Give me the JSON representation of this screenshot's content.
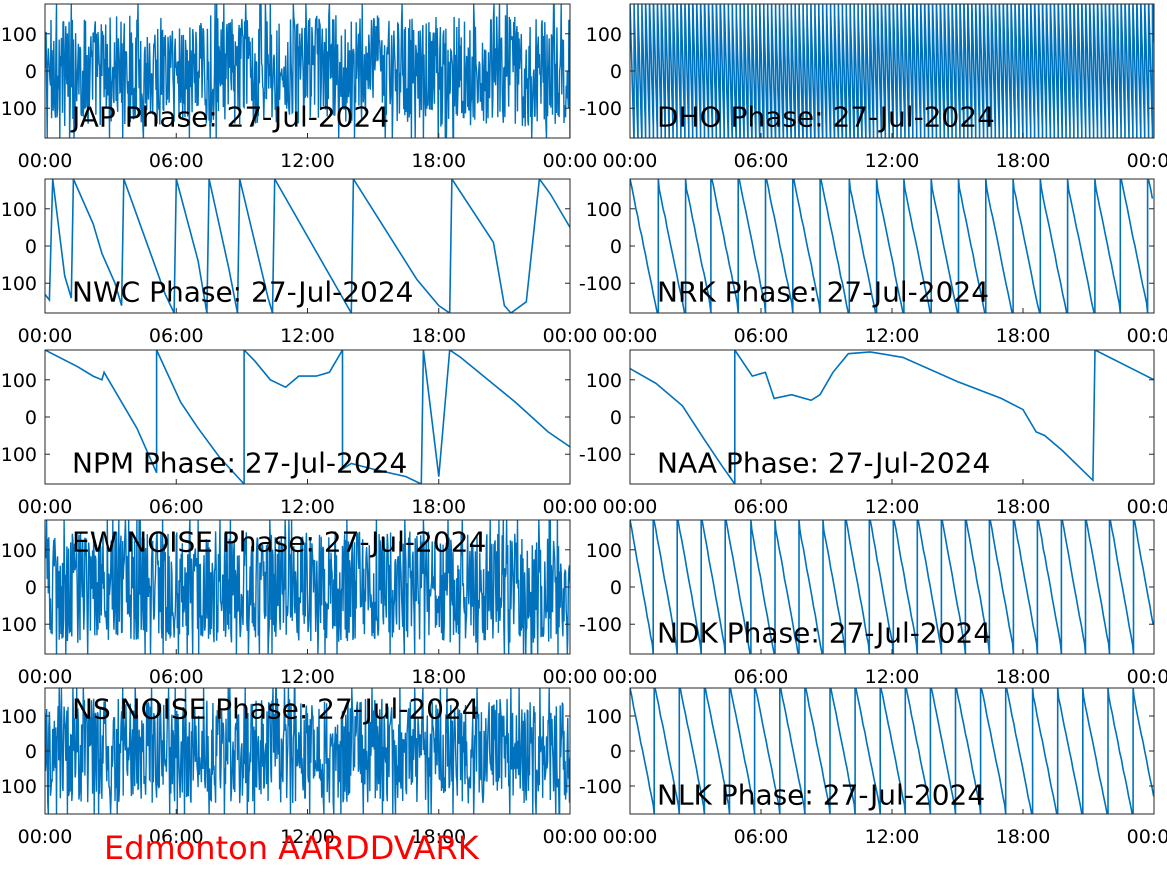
{
  "footer": {
    "title": "Edmonton AARDDVARK",
    "color": "#ff0000"
  },
  "style": {
    "line_color": "#0072bd",
    "axis_color": "#262626",
    "text_color": "#000000"
  },
  "chart_data": [
    {
      "type": "line",
      "panel": "JAP",
      "title": "JAP Phase: 27-Jul-2024",
      "xlabel": "",
      "ylabel": "",
      "xticks": [
        "00:00",
        "06:00",
        "12:00",
        "18:00",
        "00:00"
      ],
      "yticks": [
        "100",
        "0",
        "100"
      ],
      "ylim": [
        -180,
        180
      ],
      "xlim": [
        0,
        24
      ],
      "grid": false,
      "series": [
        {
          "pattern": "noise",
          "wraps": 22,
          "values": []
        }
      ]
    },
    {
      "type": "line",
      "panel": "DHO",
      "title": "DHO Phase: 27-Jul-2024",
      "xlabel": "",
      "ylabel": "",
      "xticks": [
        "00:00",
        "06:00",
        "12:00",
        "18:00",
        "00:00"
      ],
      "yticks": [
        "100",
        "0",
        "-100"
      ],
      "ylim": [
        -180,
        180
      ],
      "xlim": [
        0,
        24
      ],
      "grid": false,
      "series": [
        {
          "pattern": "dense_sawtooth",
          "period_hours": 0.18,
          "values": []
        }
      ]
    },
    {
      "type": "line",
      "panel": "NWC",
      "title": "NWC Phase: 27-Jul-2024",
      "xlabel": "",
      "ylabel": "",
      "xticks": [
        "00:00",
        "06:00",
        "12:00",
        "18:00",
        "00:00"
      ],
      "yticks": [
        "100",
        "0",
        "100"
      ],
      "ylim": [
        -180,
        180
      ],
      "xlim": [
        0,
        24
      ],
      "grid": false,
      "series": [
        {
          "pattern": "path",
          "values": [
            [
              0,
              -130
            ],
            [
              0.2,
              -145
            ],
            [
              0.35,
              180
            ],
            [
              0.9,
              -80
            ],
            [
              1.2,
              -140
            ],
            [
              1.3,
              180
            ],
            [
              2.2,
              60
            ],
            [
              2.6,
              -20
            ],
            [
              3.2,
              -100
            ],
            [
              3.5,
              -160
            ],
            [
              3.6,
              180
            ],
            [
              5.5,
              -130
            ],
            [
              5.9,
              -180
            ],
            [
              6,
              180
            ],
            [
              7.0,
              -40
            ],
            [
              7.4,
              -180
            ],
            [
              7.5,
              180
            ],
            [
              8.4,
              -60
            ],
            [
              8.8,
              -180
            ],
            [
              8.9,
              180
            ],
            [
              10.2,
              -140
            ],
            [
              10.4,
              -180
            ],
            [
              10.5,
              180
            ],
            [
              14.0,
              -180
            ],
            [
              14.1,
              180
            ],
            [
              17.0,
              -90
            ],
            [
              18.0,
              -160
            ],
            [
              18.5,
              -180
            ],
            [
              18.6,
              180
            ],
            [
              20.5,
              10
            ],
            [
              21.0,
              -160
            ],
            [
              21.3,
              -180
            ],
            [
              22.0,
              -150
            ],
            [
              22.6,
              180
            ],
            [
              23.1,
              140
            ],
            [
              24,
              50
            ]
          ]
        }
      ]
    },
    {
      "type": "line",
      "panel": "NRK",
      "title": "NRK Phase: 27-Jul-2024",
      "xlabel": "",
      "ylabel": "",
      "xticks": [
        "00:00",
        "06:00",
        "12:00",
        "18:00",
        "00:00"
      ],
      "yticks": [
        "100",
        "0",
        "-100"
      ],
      "ylim": [
        -180,
        180
      ],
      "xlim": [
        0,
        24
      ],
      "grid": false,
      "series": [
        {
          "pattern": "sawtooth",
          "period_hours": 1.25,
          "values": []
        }
      ]
    },
    {
      "type": "line",
      "panel": "NPM",
      "title": "NPM Phase: 27-Jul-2024",
      "xlabel": "",
      "ylabel": "",
      "xticks": [
        "00:00",
        "06:00",
        "12:00",
        "18:00",
        "00:00"
      ],
      "yticks": [
        "100",
        "0",
        "100"
      ],
      "ylim": [
        -180,
        180
      ],
      "xlim": [
        0,
        24
      ],
      "grid": false,
      "series": [
        {
          "pattern": "path",
          "values": [
            [
              0,
              180
            ],
            [
              1.5,
              135
            ],
            [
              2.2,
              110
            ],
            [
              2.6,
              100
            ],
            [
              2.7,
              120
            ],
            [
              3.3,
              60
            ],
            [
              4.2,
              -30
            ],
            [
              5.1,
              -150
            ],
            [
              5.1,
              180
            ],
            [
              6.2,
              40
            ],
            [
              7.0,
              -30
            ],
            [
              8.0,
              -110
            ],
            [
              9.1,
              -180
            ],
            [
              9.1,
              180
            ],
            [
              9.6,
              150
            ],
            [
              10.3,
              100
            ],
            [
              11.0,
              80
            ],
            [
              11.6,
              110
            ],
            [
              12.4,
              110
            ],
            [
              13.0,
              120
            ],
            [
              13.6,
              180
            ],
            [
              13.6,
              -140
            ],
            [
              14.0,
              -125
            ],
            [
              15.0,
              -140
            ],
            [
              16.5,
              -160
            ],
            [
              17.2,
              -180
            ],
            [
              17.3,
              180
            ],
            [
              18.0,
              -160
            ],
            [
              18.5,
              180
            ],
            [
              19.0,
              160
            ],
            [
              21.5,
              40
            ],
            [
              23.0,
              -40
            ],
            [
              24,
              -80
            ]
          ]
        }
      ]
    },
    {
      "type": "line",
      "panel": "NAA",
      "title": "NAA Phase: 27-Jul-2024",
      "xlabel": "",
      "ylabel": "",
      "xticks": [
        "00:00",
        "06:00",
        "12:00",
        "18:00",
        "00:00"
      ],
      "yticks": [
        "100",
        "0",
        "-100"
      ],
      "ylim": [
        -180,
        180
      ],
      "xlim": [
        0,
        24
      ],
      "grid": false,
      "series": [
        {
          "pattern": "path",
          "values": [
            [
              0,
              130
            ],
            [
              1.2,
              90
            ],
            [
              2.4,
              30
            ],
            [
              3.4,
              -60
            ],
            [
              4.2,
              -130
            ],
            [
              4.8,
              -180
            ],
            [
              4.8,
              180
            ],
            [
              5.6,
              110
            ],
            [
              6.2,
              120
            ],
            [
              6.6,
              50
            ],
            [
              7.4,
              60
            ],
            [
              8.3,
              45
            ],
            [
              8.7,
              60
            ],
            [
              9.3,
              120
            ],
            [
              10.0,
              170
            ],
            [
              11.0,
              175
            ],
            [
              12.5,
              160
            ],
            [
              15.0,
              95
            ],
            [
              17.0,
              50
            ],
            [
              18.0,
              20
            ],
            [
              18.6,
              -40
            ],
            [
              19.0,
              -50
            ],
            [
              19.8,
              -90
            ],
            [
              21.2,
              -170
            ],
            [
              21.3,
              180
            ],
            [
              24,
              100
            ]
          ]
        }
      ]
    },
    {
      "type": "line",
      "panel": "EW NOISE",
      "title": "EW NOISE Phase: 27-Jul-2024",
      "xlabel": "",
      "ylabel": "",
      "xticks": [
        "00:00",
        "06:00",
        "12:00",
        "18:00",
        "00:00"
      ],
      "yticks": [
        "100",
        "0",
        "100"
      ],
      "ylim": [
        -180,
        180
      ],
      "xlim": [
        0,
        24
      ],
      "grid": false,
      "series": [
        {
          "pattern": "noise",
          "wraps": 22,
          "values": []
        }
      ]
    },
    {
      "type": "line",
      "panel": "NDK",
      "title": "NDK Phase: 27-Jul-2024",
      "xlabel": "",
      "ylabel": "",
      "xticks": [
        "00:00",
        "06:00",
        "12:00",
        "18:00",
        "00:00"
      ],
      "yticks": [
        "100",
        "0",
        "-100"
      ],
      "ylim": [
        -180,
        180
      ],
      "xlim": [
        0,
        24
      ],
      "grid": false,
      "series": [
        {
          "pattern": "sawtooth",
          "period_hours": 1.1,
          "values": []
        }
      ]
    },
    {
      "type": "line",
      "panel": "NS NOISE",
      "title": "NS NOISE Phase: 27-Jul-2024",
      "xlabel": "",
      "ylabel": "",
      "xticks": [
        "00:00",
        "06:00",
        "12:00",
        "18:00",
        "00:00"
      ],
      "yticks": [
        "100",
        "0",
        "100"
      ],
      "ylim": [
        -180,
        180
      ],
      "xlim": [
        0,
        24
      ],
      "grid": false,
      "series": [
        {
          "pattern": "noise",
          "wraps": 20,
          "values": []
        }
      ]
    },
    {
      "type": "line",
      "panel": "NLK",
      "title": "NLK Phase: 27-Jul-2024",
      "xlabel": "",
      "ylabel": "",
      "xticks": [
        "00:00",
        "06:00",
        "12:00",
        "18:00",
        "00:00"
      ],
      "yticks": [
        "100",
        "0",
        "-100"
      ],
      "ylim": [
        -180,
        180
      ],
      "xlim": [
        0,
        24
      ],
      "grid": false,
      "series": [
        {
          "pattern": "sawtooth",
          "period_hours": 1.15,
          "values": []
        }
      ]
    }
  ]
}
